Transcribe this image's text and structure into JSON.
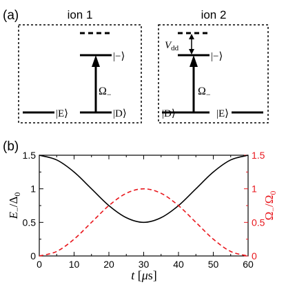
{
  "panel_a": {
    "label": "(a)",
    "ion1": {
      "title": "ion 1",
      "state_E": "|E⟩",
      "state_D": "|D⟩",
      "state_minus": "|−⟩",
      "rabi": "Ω",
      "rabi_sub": "−"
    },
    "ion2": {
      "title": "ion 2",
      "state_D": "|D⟩",
      "state_E": "|E⟩",
      "state_minus": "|−⟩",
      "rabi": "Ω",
      "rabi_sub": "−",
      "shift": "V",
      "shift_sub": "dd"
    }
  },
  "panel_b": {
    "label": "(b)"
  },
  "colors": {
    "energy": "#000000",
    "rabi": "#e8151b"
  },
  "chart_data": {
    "type": "line",
    "xlabel": "t [μs]",
    "ylabel_left": "E−/Δ0",
    "ylabel_right": "Ω−/Ω0",
    "xlim": [
      0,
      60
    ],
    "ylim_left": [
      0,
      1.5
    ],
    "ylim_right": [
      0,
      1.5
    ],
    "xticks": [
      0,
      10,
      20,
      30,
      40,
      50,
      60
    ],
    "yticks_left": [
      0,
      0.5,
      1,
      1.5
    ],
    "yticks_right": [
      0,
      0.5,
      1,
      1.5
    ],
    "tick_labels_x": [
      "0",
      "10",
      "20",
      "30",
      "40",
      "50",
      "60"
    ],
    "tick_labels_left": [
      "0",
      "0.5",
      "1",
      "1.5"
    ],
    "tick_labels_right": [
      "0",
      "0.5",
      "1",
      "1.5"
    ],
    "series": [
      {
        "axis": "left",
        "style": "solid",
        "color": "#000000",
        "x": [
          0,
          5,
          10,
          15,
          20,
          25,
          30,
          35,
          40,
          45,
          50,
          55,
          60
        ],
        "y": [
          1.5,
          1.43,
          1.25,
          1.0,
          0.75,
          0.57,
          0.5,
          0.57,
          0.75,
          1.0,
          1.25,
          1.43,
          1.5
        ]
      },
      {
        "axis": "right",
        "style": "dashed",
        "color": "#e8151b",
        "x": [
          0,
          5,
          10,
          15,
          20,
          25,
          30,
          35,
          40,
          45,
          50,
          55,
          60
        ],
        "y": [
          0,
          0.067,
          0.25,
          0.5,
          0.75,
          0.933,
          1.0,
          0.933,
          0.75,
          0.5,
          0.25,
          0.067,
          0
        ]
      }
    ]
  }
}
